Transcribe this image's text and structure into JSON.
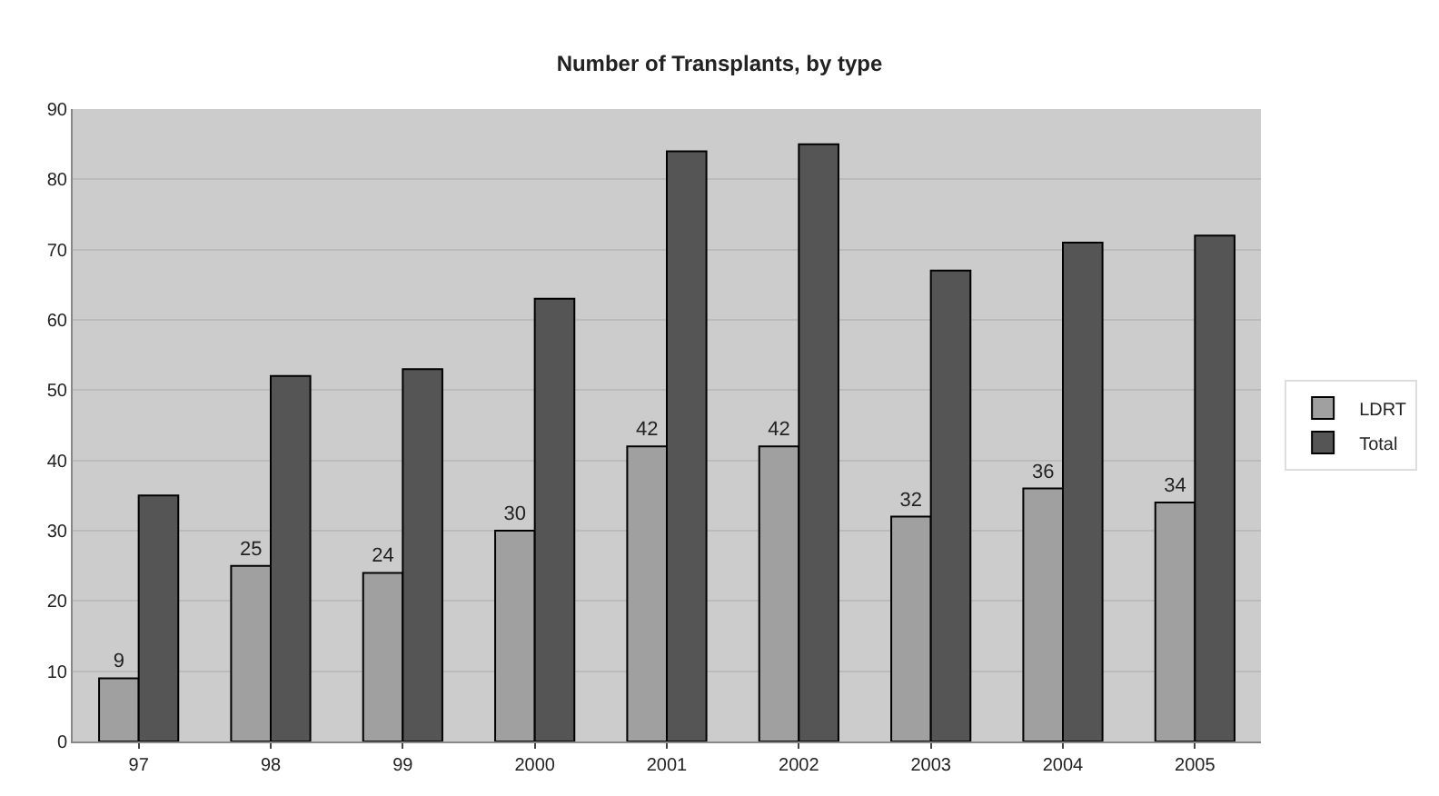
{
  "chart_data": {
    "type": "bar",
    "title": "Number of Transplants, by type",
    "categories": [
      "97",
      "98",
      "99",
      "2000",
      "2001",
      "2002",
      "2003",
      "2004",
      "2005"
    ],
    "series": [
      {
        "name": "LDRT",
        "color": "#a0a0a0",
        "values": [
          9,
          25,
          24,
          30,
          42,
          42,
          32,
          36,
          34
        ],
        "value_labels": [
          "9",
          "25",
          "24",
          "30",
          "42",
          "42",
          "32",
          "36",
          "34"
        ]
      },
      {
        "name": "Total",
        "color": "#555555",
        "values": [
          35,
          52,
          53,
          63,
          84,
          85,
          67,
          71,
          72
        ]
      }
    ],
    "ylim": [
      0,
      90
    ],
    "yticks": [
      0,
      10,
      20,
      30,
      40,
      50,
      60,
      70,
      80,
      90
    ],
    "grid": "y",
    "legend": "right"
  }
}
